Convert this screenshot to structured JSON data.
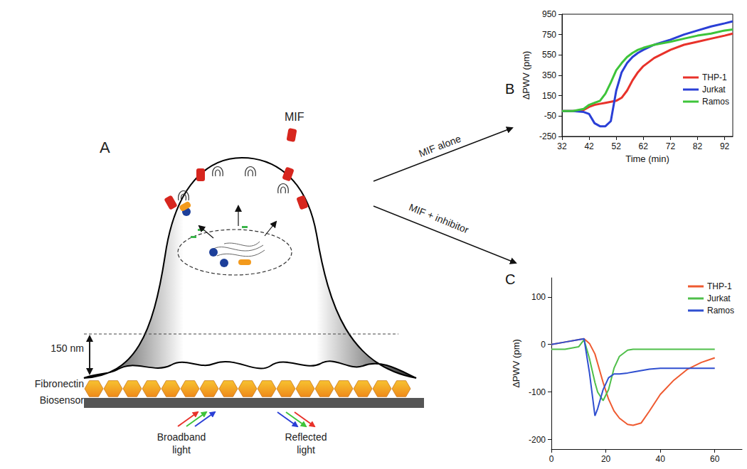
{
  "chart_data": [
    {
      "type": "line",
      "title": "B",
      "xlabel": "Time (min)",
      "ylabel": "ΔPWV (pm)",
      "x": [
        32,
        36,
        40,
        42,
        44,
        46,
        48,
        50,
        52,
        54,
        56,
        58,
        60,
        62,
        66,
        72,
        77,
        82,
        87,
        92,
        95
      ],
      "series": [
        {
          "name": "THP-1",
          "color": "#e8322a",
          "values": [
            0,
            0,
            10,
            40,
            60,
            70,
            80,
            90,
            100,
            130,
            200,
            300,
            380,
            440,
            520,
            600,
            650,
            680,
            710,
            740,
            760
          ]
        },
        {
          "name": "Jurkat",
          "color": "#2a3fd6",
          "values": [
            0,
            0,
            -10,
            -30,
            -120,
            -150,
            -150,
            -100,
            200,
            380,
            470,
            530,
            570,
            600,
            650,
            700,
            750,
            790,
            830,
            860,
            880
          ]
        },
        {
          "name": "Ramos",
          "color": "#3ec43a",
          "values": [
            0,
            0,
            20,
            60,
            80,
            100,
            170,
            280,
            400,
            470,
            530,
            570,
            600,
            620,
            650,
            680,
            710,
            740,
            760,
            790,
            800
          ]
        }
      ],
      "xlim": [
        32,
        95
      ],
      "xticks": [
        32,
        42,
        52,
        62,
        72,
        82,
        92
      ],
      "ylim": [
        -250,
        950
      ],
      "yticks": [
        -250,
        -50,
        150,
        350,
        550,
        750,
        950
      ],
      "grid": false,
      "legend": "right"
    },
    {
      "type": "line",
      "title": "C",
      "ylabel": "ΔPWV (pm)",
      "x": [
        0,
        5,
        10,
        12,
        14,
        16,
        17,
        19,
        21,
        23,
        25,
        28,
        30,
        33,
        36,
        40,
        45,
        50,
        55,
        60
      ],
      "series": [
        {
          "name": "THP-1",
          "color": "#ef5a30",
          "values": [
            0,
            5,
            10,
            12,
            2,
            -20,
            -40,
            -80,
            -115,
            -140,
            -155,
            -168,
            -170,
            -165,
            -140,
            -105,
            -75,
            -52,
            -38,
            -28
          ]
        },
        {
          "name": "Jurkat",
          "color": "#4fbf4a",
          "values": [
            -10,
            -10,
            -5,
            10,
            -30,
            -80,
            -100,
            -118,
            -95,
            -50,
            -25,
            -12,
            -10,
            -10,
            -10,
            -10,
            -10,
            -10,
            -10,
            -10
          ]
        },
        {
          "name": "Ramos",
          "color": "#2f4fd0",
          "values": [
            0,
            5,
            10,
            12,
            -60,
            -150,
            -135,
            -95,
            -70,
            -62,
            -62,
            -60,
            -58,
            -55,
            -52,
            -50,
            -50,
            -50,
            -50,
            -50
          ]
        }
      ],
      "xlim": [
        0,
        70
      ],
      "xticks": [
        0,
        20,
        40,
        60
      ],
      "ylim": [
        -220,
        140
      ],
      "yticks": [
        -200,
        -100,
        0,
        100
      ],
      "grid": false,
      "legend": "upper right"
    }
  ],
  "diagram": {
    "label": "A",
    "ligand": "MIF",
    "arrows": [
      "MIF alone",
      "MIF + inhibitor"
    ],
    "gap": "150 nm",
    "layers": [
      "Fibronectin",
      "Biosensor"
    ],
    "light": [
      [
        "Broadband",
        "light"
      ],
      [
        "Reflected",
        "light"
      ]
    ]
  }
}
